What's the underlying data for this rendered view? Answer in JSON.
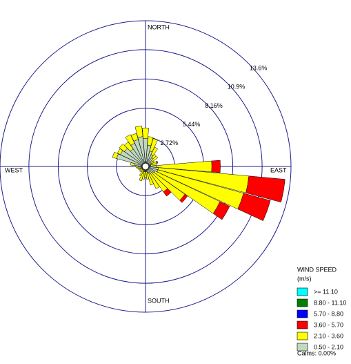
{
  "chart_data": {
    "type": "windrose",
    "compass": {
      "north": "NORTH",
      "east": "EAST",
      "south": "SOUTH",
      "west": "WEST"
    },
    "x": [
      0,
      10,
      20,
      30,
      40,
      50,
      60,
      70,
      80,
      90,
      100,
      110,
      120,
      130,
      140,
      150,
      160,
      170,
      180,
      190,
      200,
      210,
      220,
      230,
      240,
      250,
      260,
      270,
      280,
      290,
      300,
      310,
      320,
      330,
      340,
      350
    ],
    "ylim": [
      0,
      13.6
    ],
    "yticks": [
      {
        "value": 2.72,
        "label": "2.72%"
      },
      {
        "value": 5.44,
        "label": "5.44%"
      },
      {
        "value": 8.16,
        "label": "8.16%"
      },
      {
        "value": 10.9,
        "label": "10.9%"
      },
      {
        "value": 13.6,
        "label": "13.6%"
      }
    ],
    "legend_title": "WIND SPEED",
    "legend_unit": "(m/s)",
    "calms_label": "Calms: 0.00%",
    "series": [
      {
        "name": ">= 11.10",
        "color": "#00ffff",
        "values": [
          0,
          0,
          0,
          0,
          0,
          0,
          0,
          0,
          0,
          0,
          0,
          0,
          0,
          0,
          0,
          0,
          0,
          0,
          0,
          0,
          0,
          0,
          0,
          0,
          0,
          0,
          0,
          0,
          0,
          0,
          0,
          0,
          0,
          0,
          0,
          0
        ]
      },
      {
        "name": "8.80 - 11.10",
        "color": "#008000",
        "values": [
          0,
          0,
          0,
          0,
          0,
          0,
          0,
          0,
          0,
          0,
          0,
          0,
          0,
          0,
          0,
          0,
          0,
          0,
          0,
          0,
          0,
          0,
          0,
          0,
          0,
          0,
          0,
          0,
          0,
          0,
          0,
          0,
          0,
          0,
          0,
          0
        ]
      },
      {
        "name": "5.70 - 8.80",
        "color": "#0000ff",
        "values": [
          0,
          0,
          0,
          0,
          0,
          0,
          0,
          0,
          0,
          0,
          0,
          0,
          0,
          0,
          0,
          0,
          0,
          0,
          0,
          0,
          0,
          0,
          0,
          0,
          0,
          0,
          0,
          0,
          0,
          0,
          0,
          0,
          0,
          0,
          0,
          0
        ]
      },
      {
        "name": "3.60 - 5.70",
        "color": "#ff0000",
        "values": [
          0,
          0,
          0,
          0,
          0,
          0,
          0,
          0.1,
          0,
          0.8,
          3.4,
          2.6,
          1.0,
          0.3,
          0.5,
          0,
          0,
          0,
          0,
          0,
          0,
          0,
          0,
          0,
          0,
          0,
          0,
          0,
          0,
          0,
          0,
          0,
          0,
          0,
          0,
          0
        ]
      },
      {
        "name": "2.10 - 3.60",
        "color": "#ffff00",
        "values": [
          1.0,
          0.8,
          1.2,
          0.8,
          0.4,
          0.6,
          0.3,
          0.6,
          0.5,
          5.2,
          8.5,
          8.3,
          6.7,
          3.6,
          2.1,
          1.6,
          1.2,
          0.7,
          0.5,
          0.7,
          0.9,
          0.6,
          0.3,
          0.3,
          0.2,
          0.2,
          0.2,
          0.2,
          0.4,
          0.4,
          0.3,
          0.6,
          0.8,
          0.9,
          0.6,
          1.0
        ]
      },
      {
        "name": "0.50 - 2.10",
        "color": "#c0d8c0",
        "values": [
          2.6,
          2.0,
          1.5,
          1.2,
          1.0,
          0.8,
          0.6,
          0.5,
          0.5,
          1.0,
          1.2,
          1.2,
          1.0,
          0.9,
          0.8,
          0.7,
          0.6,
          0.5,
          0.5,
          0.5,
          0.5,
          0.4,
          0.3,
          0.4,
          0.4,
          0.5,
          0.6,
          0.7,
          1.0,
          2.8,
          2.6,
          2.4,
          2.0,
          2.4,
          2.6,
          2.8
        ]
      }
    ]
  }
}
